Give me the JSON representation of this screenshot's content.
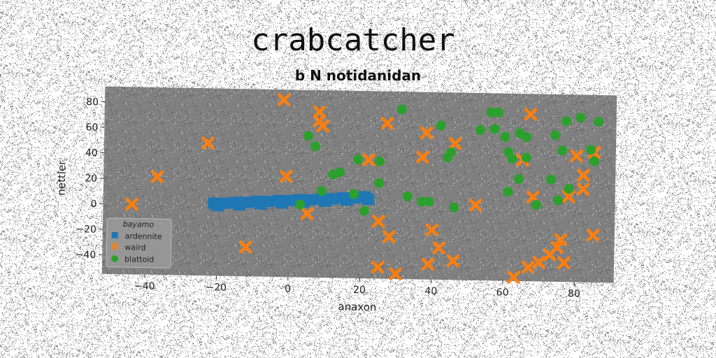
{
  "chart_data": {
    "type": "scatter",
    "title": "crabcatcher",
    "subtitle": "b N notidanidan",
    "xlabel": "anaxon",
    "ylabel": "nettler",
    "xlim": [
      -52,
      91
    ],
    "ylim": [
      -55,
      92
    ],
    "xticks": [
      -40,
      -20,
      0,
      20,
      40,
      60,
      80
    ],
    "yticks": [
      -40,
      -20,
      0,
      20,
      40,
      60,
      80
    ],
    "grid": false,
    "legend": {
      "title": "bayamo",
      "position": "lower-left"
    },
    "series": [
      {
        "name": "ardennite",
        "marker": "square",
        "color": "#1f77b4",
        "points": [
          [
            -21,
            2
          ],
          [
            -18,
            2
          ],
          [
            -15,
            3
          ],
          [
            -12,
            3
          ],
          [
            -9,
            4
          ],
          [
            -6,
            4
          ],
          [
            -3,
            5
          ],
          [
            0,
            5
          ],
          [
            3,
            6
          ],
          [
            6,
            6
          ],
          [
            9,
            7
          ],
          [
            12,
            7
          ],
          [
            15,
            8
          ],
          [
            18,
            8
          ],
          [
            21,
            9
          ],
          [
            -20,
            0
          ],
          [
            -14,
            1
          ],
          [
            -8,
            2
          ],
          [
            -2,
            3
          ],
          [
            4,
            4
          ],
          [
            10,
            5
          ],
          [
            16,
            6
          ],
          [
            22,
            7
          ]
        ]
      },
      {
        "name": "waird",
        "marker": "x",
        "color": "#ff7f0e",
        "points": [
          [
            -44,
            0
          ],
          [
            -37,
            22
          ],
          [
            -23,
            49
          ],
          [
            -12,
            -32
          ],
          [
            -2,
            84
          ],
          [
            -1,
            24
          ],
          [
            5,
            -5
          ],
          [
            8,
            75
          ],
          [
            8,
            68
          ],
          [
            9,
            64
          ],
          [
            22,
            38
          ],
          [
            25,
            -10
          ],
          [
            27,
            67
          ],
          [
            28,
            -22
          ],
          [
            25,
            -46
          ],
          [
            30,
            -51
          ],
          [
            37,
            41
          ],
          [
            38,
            60
          ],
          [
            39,
            -43
          ],
          [
            40,
            -16
          ],
          [
            42,
            -30
          ],
          [
            46,
            52
          ],
          [
            46,
            -40
          ],
          [
            52,
            4
          ],
          [
            63,
            -52
          ],
          [
            65,
            40
          ],
          [
            67,
            76
          ],
          [
            68,
            11
          ],
          [
            67,
            -44
          ],
          [
            70,
            -40
          ],
          [
            73,
            -34
          ],
          [
            75,
            -28
          ],
          [
            76,
            -22
          ],
          [
            78,
            12
          ],
          [
            80,
            44
          ],
          [
            82,
            29
          ],
          [
            82,
            18
          ],
          [
            85,
            47
          ],
          [
            85,
            -18
          ],
          [
            77,
            -40
          ]
        ]
      },
      {
        "name": "blattoid",
        "marker": "circle",
        "color": "#2ca02c",
        "points": [
          [
            3,
            2
          ],
          [
            5,
            56
          ],
          [
            7,
            48
          ],
          [
            9,
            13
          ],
          [
            12,
            26
          ],
          [
            14,
            28
          ],
          [
            18,
            11
          ],
          [
            19,
            38
          ],
          [
            21,
            -2
          ],
          [
            25,
            37
          ],
          [
            25,
            20
          ],
          [
            31,
            78
          ],
          [
            33,
            10
          ],
          [
            37,
            6
          ],
          [
            39,
            6
          ],
          [
            42,
            66
          ],
          [
            44,
            41
          ],
          [
            45,
            45
          ],
          [
            46,
            2
          ],
          [
            53,
            63
          ],
          [
            56,
            77
          ],
          [
            57,
            64
          ],
          [
            58,
            77
          ],
          [
            60,
            58
          ],
          [
            61,
            46
          ],
          [
            62,
            41
          ],
          [
            64,
            61
          ],
          [
            64,
            25
          ],
          [
            66,
            58
          ],
          [
            66,
            42
          ],
          [
            61,
            15
          ],
          [
            69,
            5
          ],
          [
            73,
            25
          ],
          [
            74,
            60
          ],
          [
            75,
            9
          ],
          [
            76,
            48
          ],
          [
            77,
            71
          ],
          [
            78,
            18
          ],
          [
            81,
            74
          ],
          [
            84,
            49
          ],
          [
            85,
            40
          ],
          [
            86,
            71
          ]
        ]
      }
    ]
  }
}
